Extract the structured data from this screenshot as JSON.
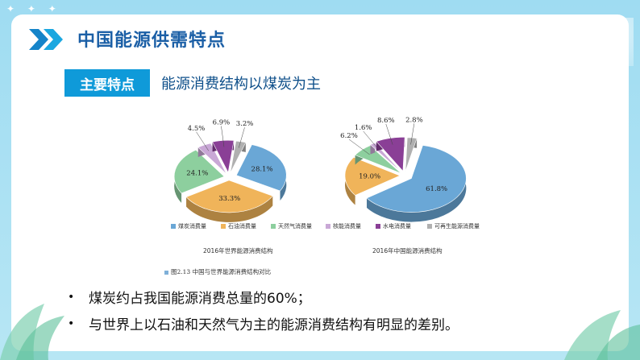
{
  "slide": {
    "title": "中国能源供需特点",
    "badge": "主要特点",
    "subtitle": "能源消费结构以煤炭为主",
    "bullets": [
      "煤炭约占我国能源消费总量的60%；",
      "与世界上以石油和天然气为主的能源消费结构有明显的差别。"
    ],
    "figure_note": "图2.13   中国与世界能源消费结构对比"
  },
  "icons": {
    "chevrons": "double-chevron-right-icon",
    "bullet": "bullet-dot-icon"
  },
  "colors": {
    "coal": "#6aa7d6",
    "oil": "#f0b45a",
    "gas": "#8dcf9e",
    "nuclear": "#c9a8d6",
    "hydro": "#8a3f96",
    "renewable": "#b0b0b0",
    "title": "#1b5fa6",
    "badge": "#0f9ad9"
  },
  "chart_data": [
    {
      "type": "pie",
      "title": "2016年世界能源消费结构",
      "categories": [
        "煤炭消费量",
        "石油消费量",
        "天然气消费量",
        "核能消费量",
        "水电消费量",
        "可再生能源消费量"
      ],
      "values": [
        28.1,
        33.3,
        24.1,
        4.5,
        6.9,
        3.2
      ],
      "labels": [
        "28.1%",
        "33.3%",
        "24.1%",
        "4.5%",
        "6.9%",
        "3.2%"
      ],
      "legend": "bottom"
    },
    {
      "type": "pie",
      "title": "2016年中国能源消费结构",
      "categories": [
        "煤炭消费量",
        "石油消费量",
        "天然气消费量",
        "核能消费量",
        "水电消费量",
        "可再生能源消费量"
      ],
      "values": [
        61.8,
        19.0,
        6.2,
        1.6,
        8.6,
        2.8
      ],
      "labels": [
        "61.8%",
        "19.0%",
        "6.2%",
        "1.6%",
        "8.6%",
        "2.8%"
      ],
      "legend": "bottom"
    }
  ]
}
